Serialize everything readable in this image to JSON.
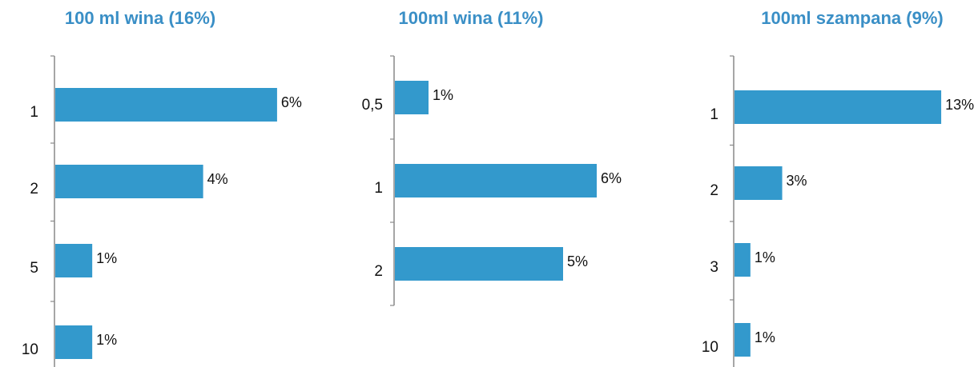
{
  "colors": {
    "title": "#3a8fc6",
    "bar": "#3399cc",
    "axis": "#888888",
    "text": "#111111"
  },
  "chart_data": [
    {
      "type": "bar",
      "orientation": "horizontal",
      "title": "100 ml wina (16%)",
      "categories": [
        "1",
        "2",
        "5",
        "10"
      ],
      "values": [
        6,
        4,
        1,
        1
      ],
      "value_labels": [
        "6%",
        "4%",
        "1%",
        "1%"
      ],
      "xlim": [
        0,
        6.5
      ],
      "grid": false,
      "legend": "none"
    },
    {
      "type": "bar",
      "orientation": "horizontal",
      "title": "100ml wina (11%)",
      "categories": [
        "0,5",
        "1",
        "2"
      ],
      "values": [
        1,
        6,
        5
      ],
      "value_labels": [
        "1%",
        "6%",
        "5%"
      ],
      "xlim": [
        0,
        6.5
      ],
      "grid": false,
      "legend": "none"
    },
    {
      "type": "bar",
      "orientation": "horizontal",
      "title": "100ml szampana (9%)",
      "categories": [
        "1",
        "2",
        "3",
        "10"
      ],
      "values": [
        13,
        3,
        1,
        1
      ],
      "value_labels": [
        "13%",
        "3%",
        "1%",
        "1%"
      ],
      "xlim": [
        0,
        13.5
      ],
      "grid": false,
      "legend": "none"
    }
  ]
}
